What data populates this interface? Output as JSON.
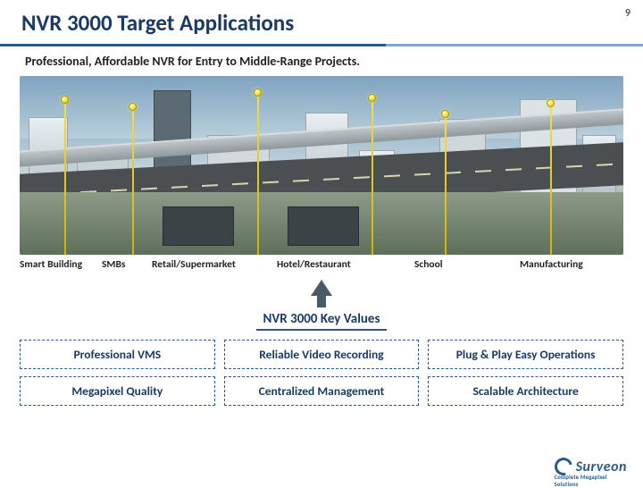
{
  "page_number": "9",
  "title": "NVR 3000 Target Applications",
  "subtitle": "Professional, Affordable NVR for Entry to Middle-Range Projects.",
  "categories": [
    "Smart Building",
    "SMBs",
    "Retail/Supermarket",
    "Hotel/Restaurant",
    "School",
    "Manufacturing"
  ],
  "key_values_title": "NVR 3000 Key Values",
  "key_values": [
    "Professional VMS",
    "Reliable Video Recording",
    "Plug & Play Easy Operations",
    "Megapixel Quality",
    "Centralized Management",
    "Scalable Architecture"
  ],
  "logo": {
    "name": "Surveon",
    "tagline": "Complete Megapixel Solutions"
  },
  "colors": {
    "brand_dark": "#1B3A63",
    "brand_blue": "#2B5A8A",
    "brand_light": "#7FA8CC",
    "pin_yellow": "#F1DF4A"
  }
}
